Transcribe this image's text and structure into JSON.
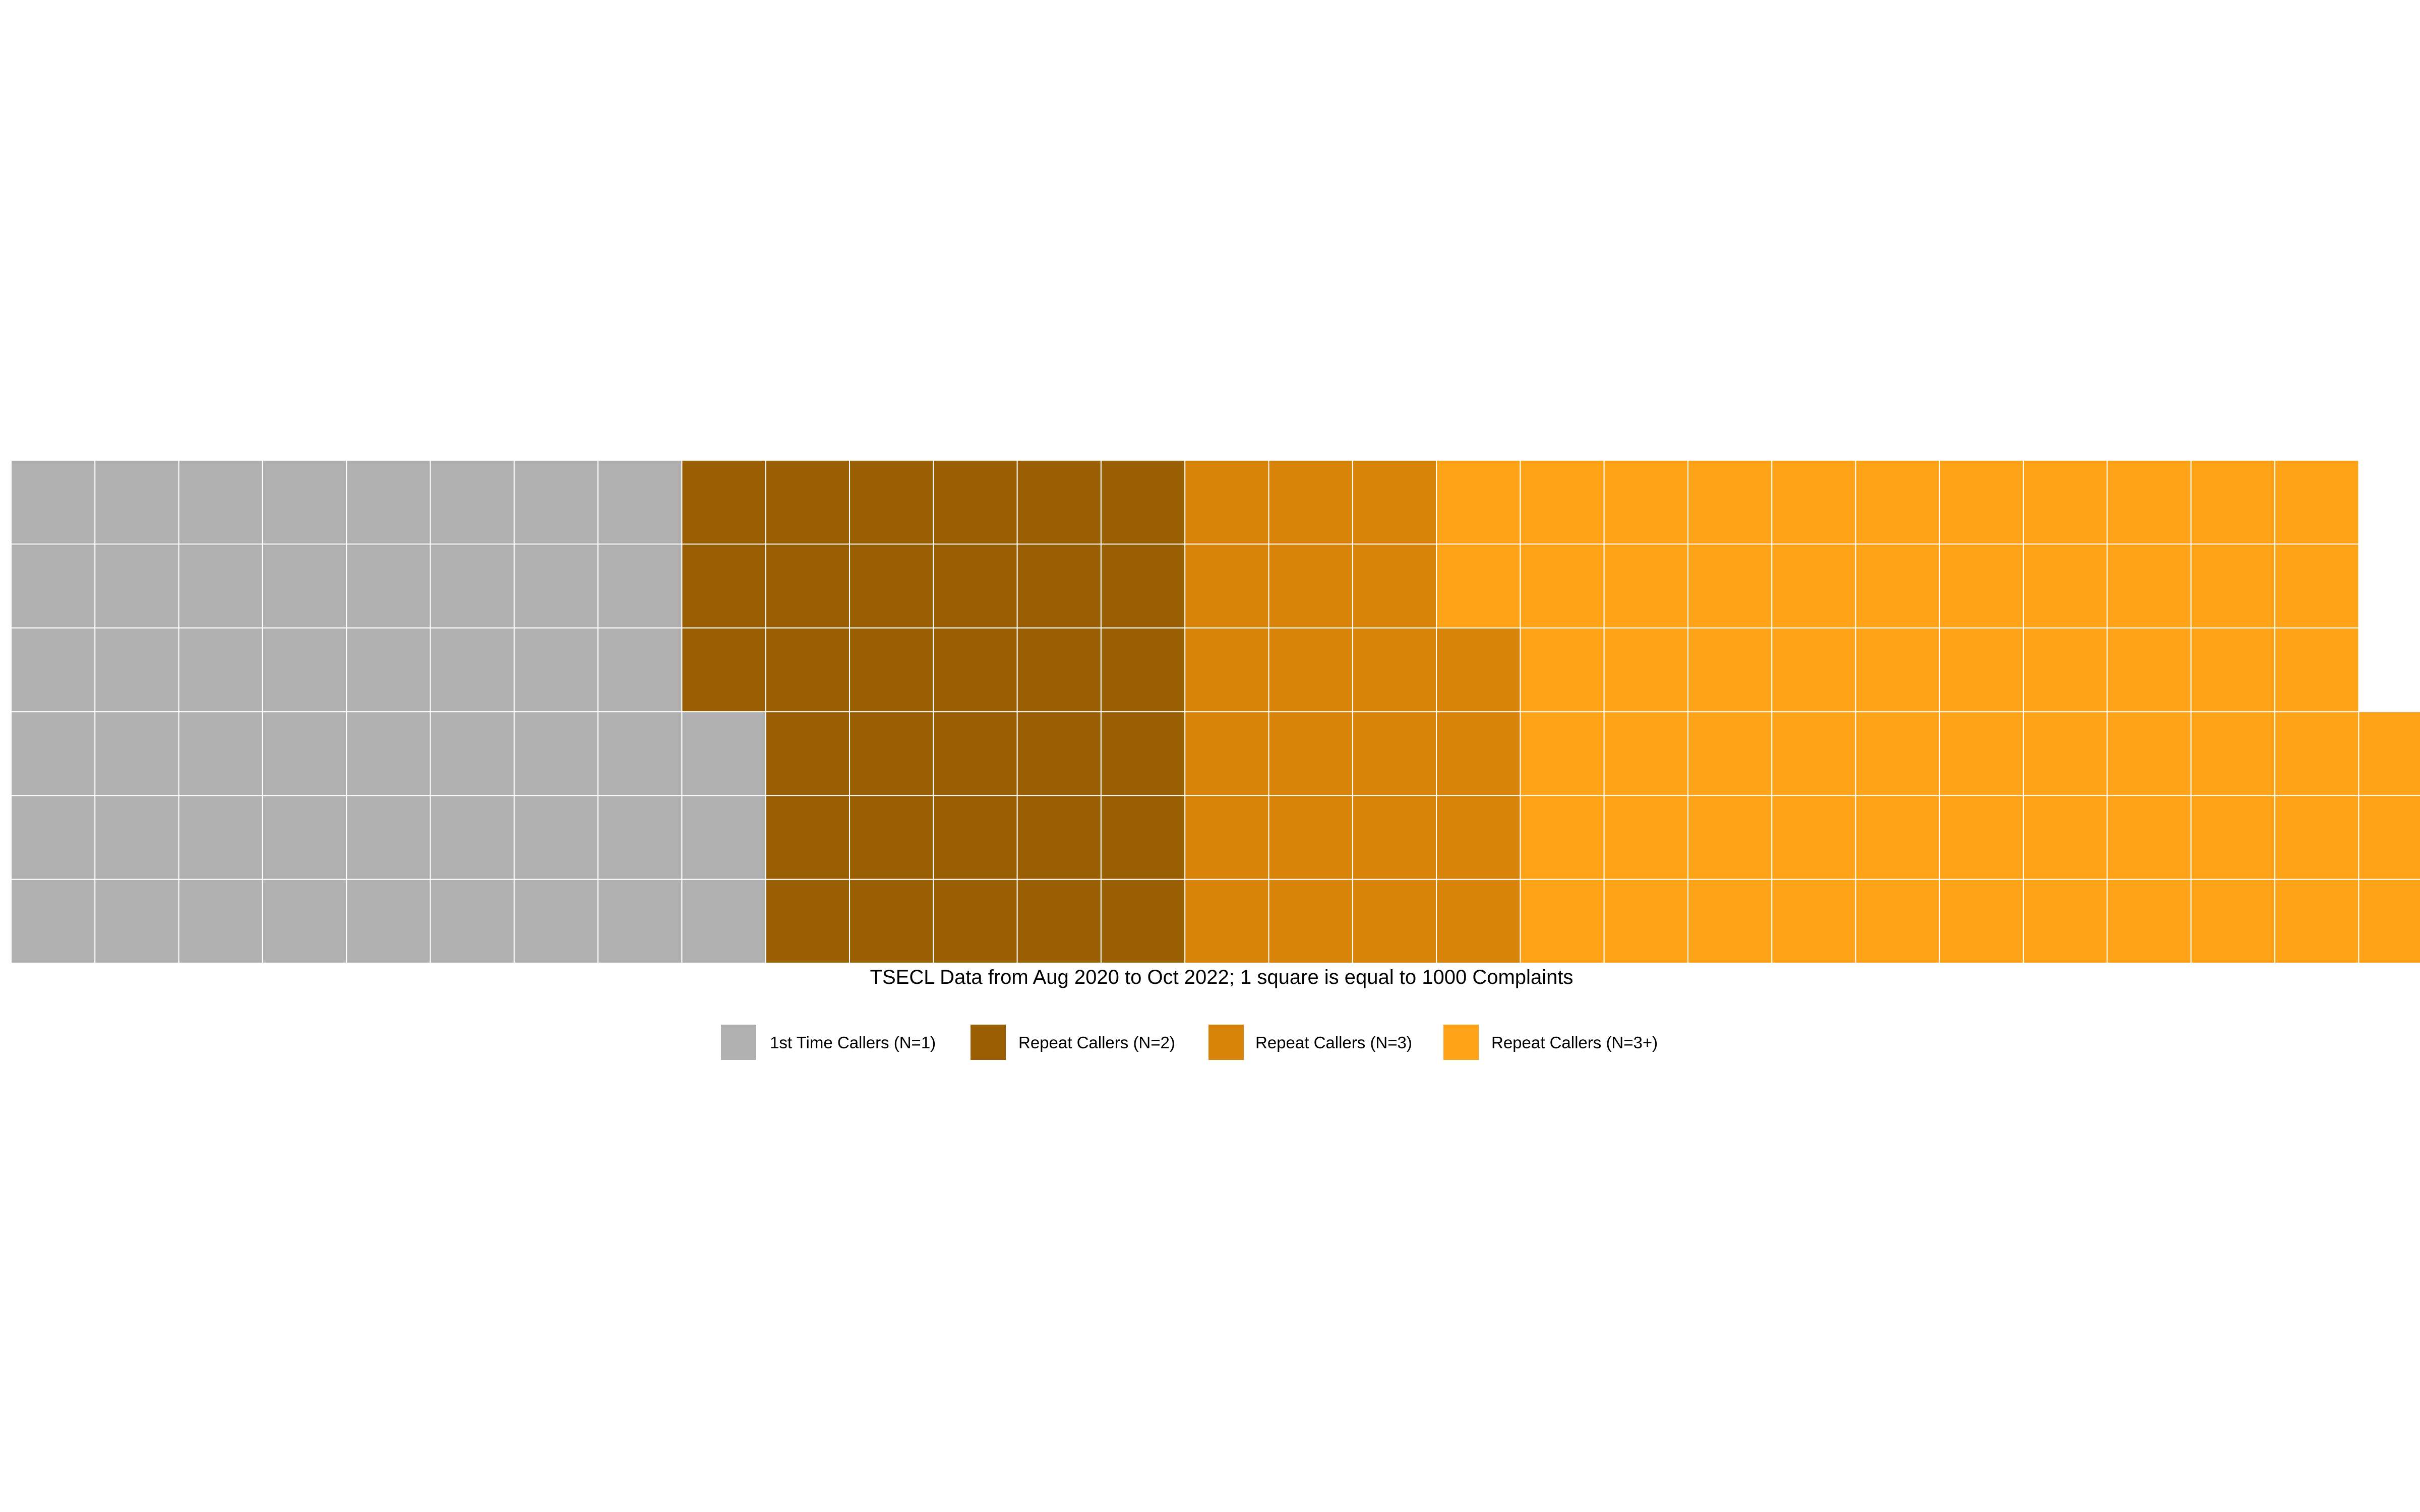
{
  "chart_data": {
    "type": "waffle",
    "caption": "TSECL Data from Aug 2020 to Oct 2022; 1 square is equal to 1000 Complaints",
    "rows": 6,
    "fill_order": "column-major, bottom-to-top, left-to-right",
    "unit": "1 square = 1000 Complaints",
    "series": [
      {
        "name": "1st Time Callers (N=1)",
        "squares": 51,
        "color": "#B0B0B0"
      },
      {
        "name": "Repeat Callers (N=2)",
        "squares": 33,
        "color": "#9A5F03"
      },
      {
        "name": "Repeat Callers (N=3)",
        "squares": 22,
        "color": "#D8830A"
      },
      {
        "name": "Repeat Callers (N=3+)",
        "squares": 65,
        "color": "#FEA217"
      }
    ],
    "legend_position": "bottom"
  }
}
